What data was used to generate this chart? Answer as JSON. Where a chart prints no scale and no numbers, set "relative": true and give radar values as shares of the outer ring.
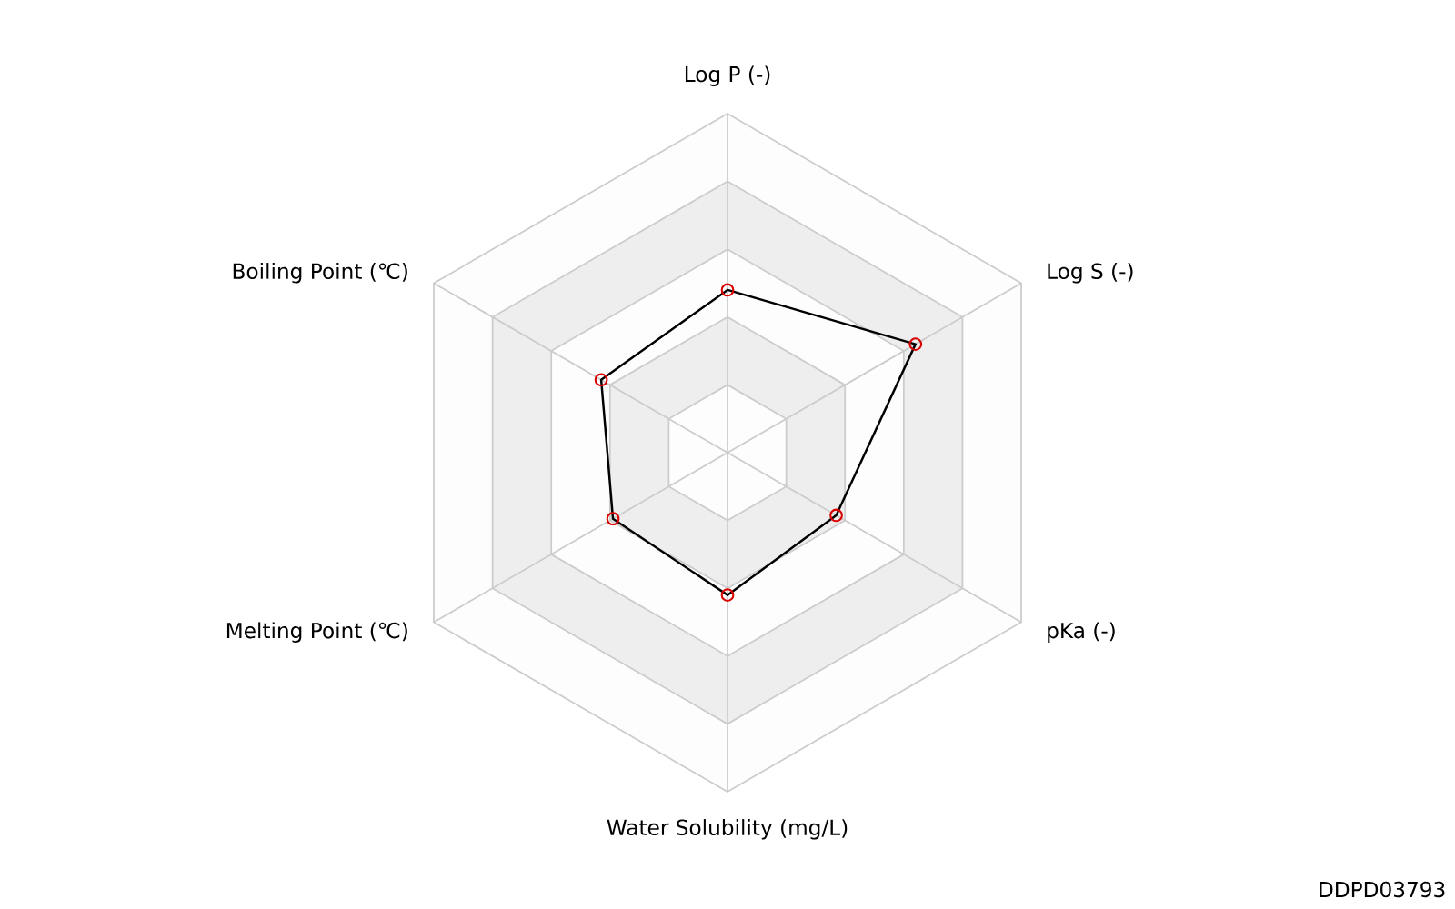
{
  "chart_data": {
    "type": "radar",
    "relative": true,
    "marker": "circle",
    "categories": [
      "Log P (-)",
      "Log S (-)",
      "pKa (-)",
      "Water Solubility (mg/L)",
      "Melting Point (℃)",
      "Boiling Point (℃)"
    ],
    "series": [
      {
        "color": "#000000",
        "values": [
          0.48,
          0.64,
          0.37,
          0.42,
          0.39,
          0.43
        ]
      }
    ],
    "annotations": [
      "DDPD03793"
    ]
  }
}
